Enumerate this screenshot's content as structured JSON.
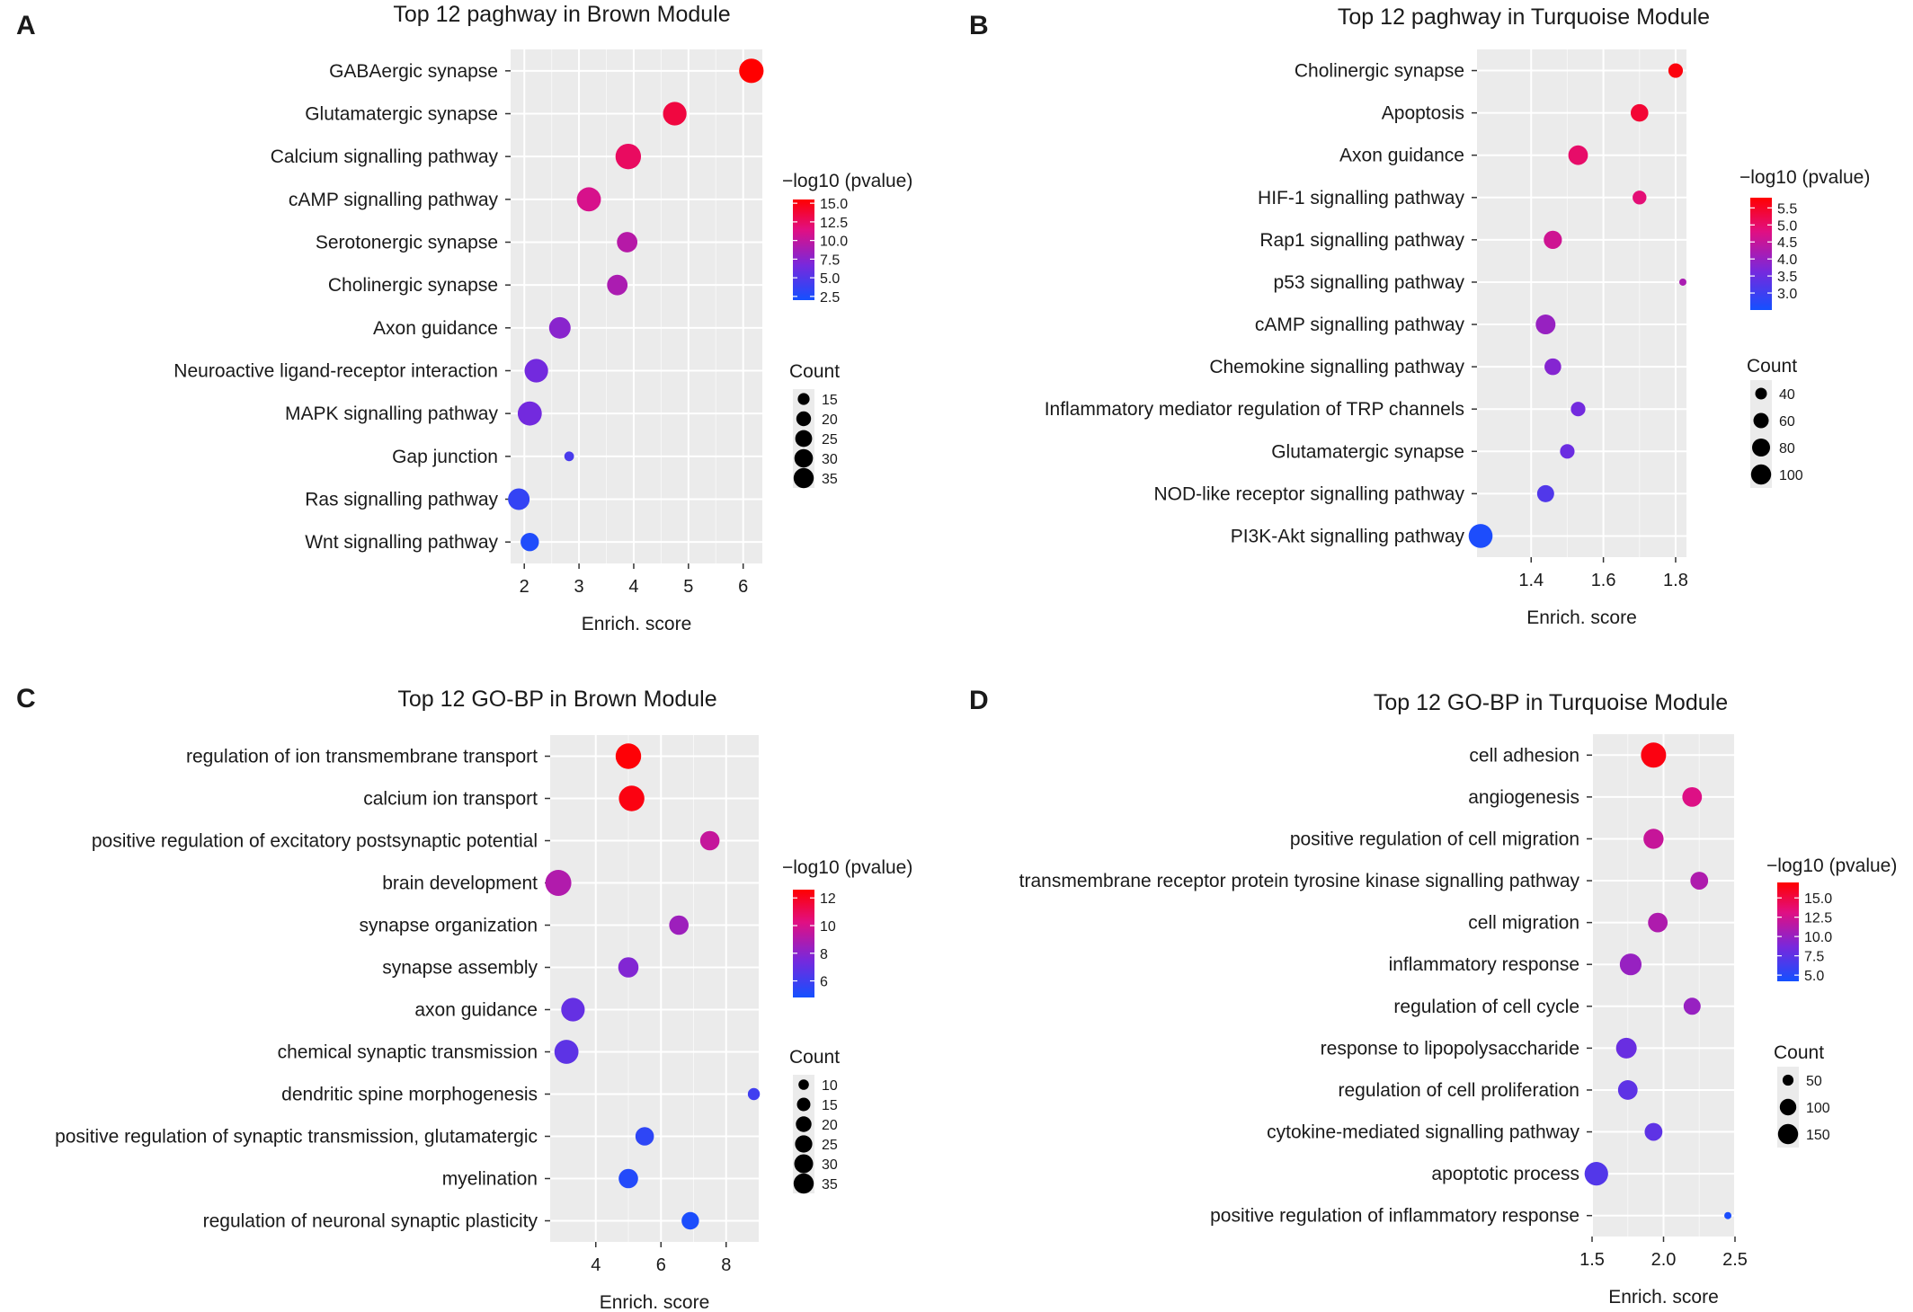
{
  "figure": {
    "panels": [
      "A",
      "B",
      "C",
      "D"
    ]
  },
  "chart_data": [
    {
      "panel_label": "A",
      "type": "scatter",
      "title": "Top 12 paghway in Brown Module",
      "xlabel": "Enrich. score",
      "ylabel": "",
      "xlim": [
        1.75,
        6.35
      ],
      "xticks": [
        2,
        3,
        4,
        5,
        6
      ],
      "grid": true,
      "categories": [
        "GABAergic synapse",
        "Glutamatergic synapse",
        "Calcium signalling pathway",
        "cAMP signalling pathway",
        "Serotonergic synapse",
        "Cholinergic synapse",
        "Axon guidance",
        "Neuroactive ligand-receptor interaction",
        "MAPK signalling pathway",
        "Gap junction",
        "Ras signalling pathway",
        "Wnt signalling pathway"
      ],
      "x": [
        6.15,
        4.75,
        3.9,
        3.18,
        3.88,
        3.7,
        2.65,
        2.22,
        2.1,
        2.82,
        1.9,
        2.1
      ],
      "color_values": [
        15.5,
        13.5,
        12.5,
        11,
        9.5,
        9,
        7.5,
        6.5,
        6.5,
        4.5,
        3.5,
        2.5
      ],
      "sizes": [
        33,
        31,
        36,
        32,
        24,
        24,
        26,
        31,
        32,
        11,
        26,
        20
      ],
      "color_legend": {
        "title": "−log10 (pvalue)",
        "ticks": [
          "15.0",
          "12.5",
          "10.0",
          "7.5",
          "5.0",
          "2.5"
        ],
        "tick_values": [
          15,
          12.5,
          10,
          7.5,
          5,
          2.5
        ],
        "range": [
          2,
          15.5
        ]
      },
      "size_legend": {
        "title": "Count",
        "labels": [
          "15",
          "20",
          "25",
          "30",
          "35"
        ],
        "values": [
          15,
          20,
          25,
          30,
          35
        ]
      },
      "legend_position": "right"
    },
    {
      "panel_label": "B",
      "type": "scatter",
      "title": "Top 12 paghway in Turquoise Module",
      "xlabel": "Enrich. score",
      "ylabel": "",
      "xlim": [
        1.25,
        1.83
      ],
      "xticks": [
        1.4,
        1.6,
        1.8
      ],
      "xtick_labels": [
        "1.4",
        "1.6",
        "1.8"
      ],
      "grid": true,
      "categories": [
        "Cholinergic synapse",
        "Apoptosis",
        "Axon guidance",
        "HIF-1 signalling pathway",
        "Rap1 signalling pathway",
        "p53 signalling pathway",
        "cAMP signalling pathway",
        "Chemokine signalling pathway",
        "Inflammatory mediator regulation of TRP channels",
        "Glutamatergic synapse",
        "NOD-like receptor signalling pathway",
        "PI3K-Akt signalling pathway"
      ],
      "x": [
        1.8,
        1.7,
        1.53,
        1.7,
        1.46,
        1.82,
        1.44,
        1.46,
        1.53,
        1.5,
        1.44,
        1.26
      ],
      "color_values": [
        5.7,
        5.4,
        5.0,
        4.9,
        4.6,
        4.2,
        4.0,
        3.8,
        3.6,
        3.5,
        3.2,
        2.6
      ],
      "sizes": [
        40,
        52,
        62,
        38,
        55,
        20,
        63,
        48,
        40,
        40,
        50,
        90
      ],
      "color_legend": {
        "title": "−log10 (pvalue)",
        "ticks": [
          "5.5",
          "5.0",
          "4.5",
          "4.0",
          "3.5",
          "3.0"
        ],
        "tick_values": [
          5.5,
          5,
          4.5,
          4,
          3.5,
          3
        ],
        "range": [
          2.5,
          5.8
        ]
      },
      "size_legend": {
        "title": "Count",
        "labels": [
          "40",
          "60",
          "80",
          "100"
        ],
        "values": [
          40,
          60,
          80,
          100
        ]
      },
      "legend_position": "right"
    },
    {
      "panel_label": "C",
      "type": "scatter",
      "title": "Top 12 GO-BP in Brown Module",
      "xlabel": "Enrich. score",
      "ylabel": "",
      "xlim": [
        2.6,
        9.0
      ],
      "xticks": [
        4,
        6,
        8
      ],
      "grid": true,
      "categories": [
        "regulation of ion transmembrane transport",
        "calcium ion transport",
        "positive regulation of excitatory postsynaptic potential",
        "brain development",
        "synapse organization",
        "synapse assembly",
        "axon guidance",
        "chemical synaptic transmission",
        "dendritic spine morphogenesis",
        "positive regulation of synaptic transmission, glutamatergic",
        "myelination",
        "regulation of neuronal synaptic plasticity"
      ],
      "x": [
        5.0,
        5.1,
        7.5,
        2.85,
        6.55,
        5.0,
        3.3,
        3.1,
        8.85,
        5.5,
        5.0,
        6.9
      ],
      "color_values": [
        12.5,
        12.3,
        9.5,
        9.0,
        8.5,
        7.8,
        7.0,
        6.8,
        6.0,
        5.5,
        5.2,
        5.0
      ],
      "sizes": [
        36,
        36,
        20,
        38,
        20,
        22,
        30,
        32,
        9,
        18,
        20,
        16
      ],
      "color_legend": {
        "title": "−log10 (pvalue)",
        "ticks": [
          "12",
          "10",
          "8",
          "6"
        ],
        "tick_values": [
          12,
          10,
          8,
          6
        ],
        "range": [
          4.8,
          12.6
        ]
      },
      "size_legend": {
        "title": "Count",
        "labels": [
          "10",
          "15",
          "20",
          "25",
          "30",
          "35"
        ],
        "values": [
          10,
          15,
          20,
          25,
          30,
          35
        ]
      },
      "legend_position": "right"
    },
    {
      "panel_label": "D",
      "type": "scatter",
      "title": "Top 12 GO-BP in Turquoise Module",
      "xlabel": "Enrich. score",
      "ylabel": "",
      "xlim": [
        1.5,
        2.5
      ],
      "xticks": [
        1.5,
        2.0,
        2.5
      ],
      "xtick_labels": [
        "1.5",
        "2.0",
        "2.5"
      ],
      "grid": true,
      "categories": [
        "cell adhesion",
        "angiogenesis",
        "positive regulation of cell migration",
        "transmembrane receptor protein tyrosine kinase signalling pathway",
        "cell migration",
        "inflammatory response",
        "regulation of cell cycle",
        "response to lipopolysaccharide",
        "regulation of cell proliferation",
        "cytokine-mediated signalling pathway",
        "apoptotic process",
        "positive regulation of inflammatory response"
      ],
      "x": [
        1.93,
        2.2,
        1.93,
        2.25,
        1.96,
        1.77,
        2.2,
        1.74,
        1.75,
        1.93,
        1.53,
        2.45
      ],
      "color_values": [
        16.5,
        13.0,
        12.0,
        11.0,
        11.0,
        10.0,
        10.0,
        8.0,
        7.5,
        7.5,
        7.0,
        4.5
      ],
      "sizes": [
        150,
        90,
        95,
        75,
        90,
        110,
        70,
        100,
        90,
        75,
        130,
        20
      ],
      "color_legend": {
        "title": "−log10 (pvalue)",
        "ticks": [
          "15.0",
          "12.5",
          "10.0",
          "7.5",
          "5.0"
        ],
        "tick_values": [
          15,
          12.5,
          10,
          7.5,
          5
        ],
        "range": [
          4.2,
          17
        ]
      },
      "size_legend": {
        "title": "Count",
        "labels": [
          "50",
          "100",
          "150"
        ],
        "values": [
          50,
          100,
          150
        ]
      },
      "legend_position": "right"
    }
  ]
}
